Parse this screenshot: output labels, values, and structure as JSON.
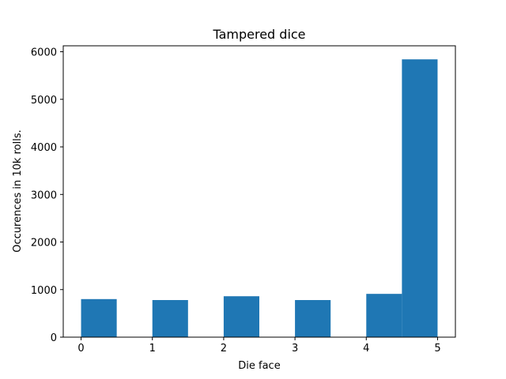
{
  "chart_data": {
    "type": "bar",
    "title": "Tampered dice",
    "xlabel": "Die face",
    "ylabel": "Occurences in 10k rolls.",
    "xlim": [
      -0.25,
      5.25
    ],
    "ylim": [
      0,
      6125
    ],
    "xticks": [
      0,
      1,
      2,
      3,
      4,
      5
    ],
    "yticks": [
      0,
      1000,
      2000,
      3000,
      4000,
      5000,
      6000
    ],
    "bins": [
      {
        "x0": 0.0,
        "x1": 0.5,
        "value": 800
      },
      {
        "x0": 0.5,
        "x1": 1.0,
        "value": 0
      },
      {
        "x0": 1.0,
        "x1": 1.5,
        "value": 780
      },
      {
        "x0": 1.5,
        "x1": 2.0,
        "value": 0
      },
      {
        "x0": 2.0,
        "x1": 2.5,
        "value": 860
      },
      {
        "x0": 2.5,
        "x1": 3.0,
        "value": 0
      },
      {
        "x0": 3.0,
        "x1": 3.5,
        "value": 780
      },
      {
        "x0": 3.5,
        "x1": 4.0,
        "value": 0
      },
      {
        "x0": 4.0,
        "x1": 4.5,
        "value": 910
      },
      {
        "x0": 4.5,
        "x1": 5.0,
        "value": 5840
      }
    ],
    "bar_color": "#1f77b4",
    "grid": false,
    "legend": "none"
  }
}
